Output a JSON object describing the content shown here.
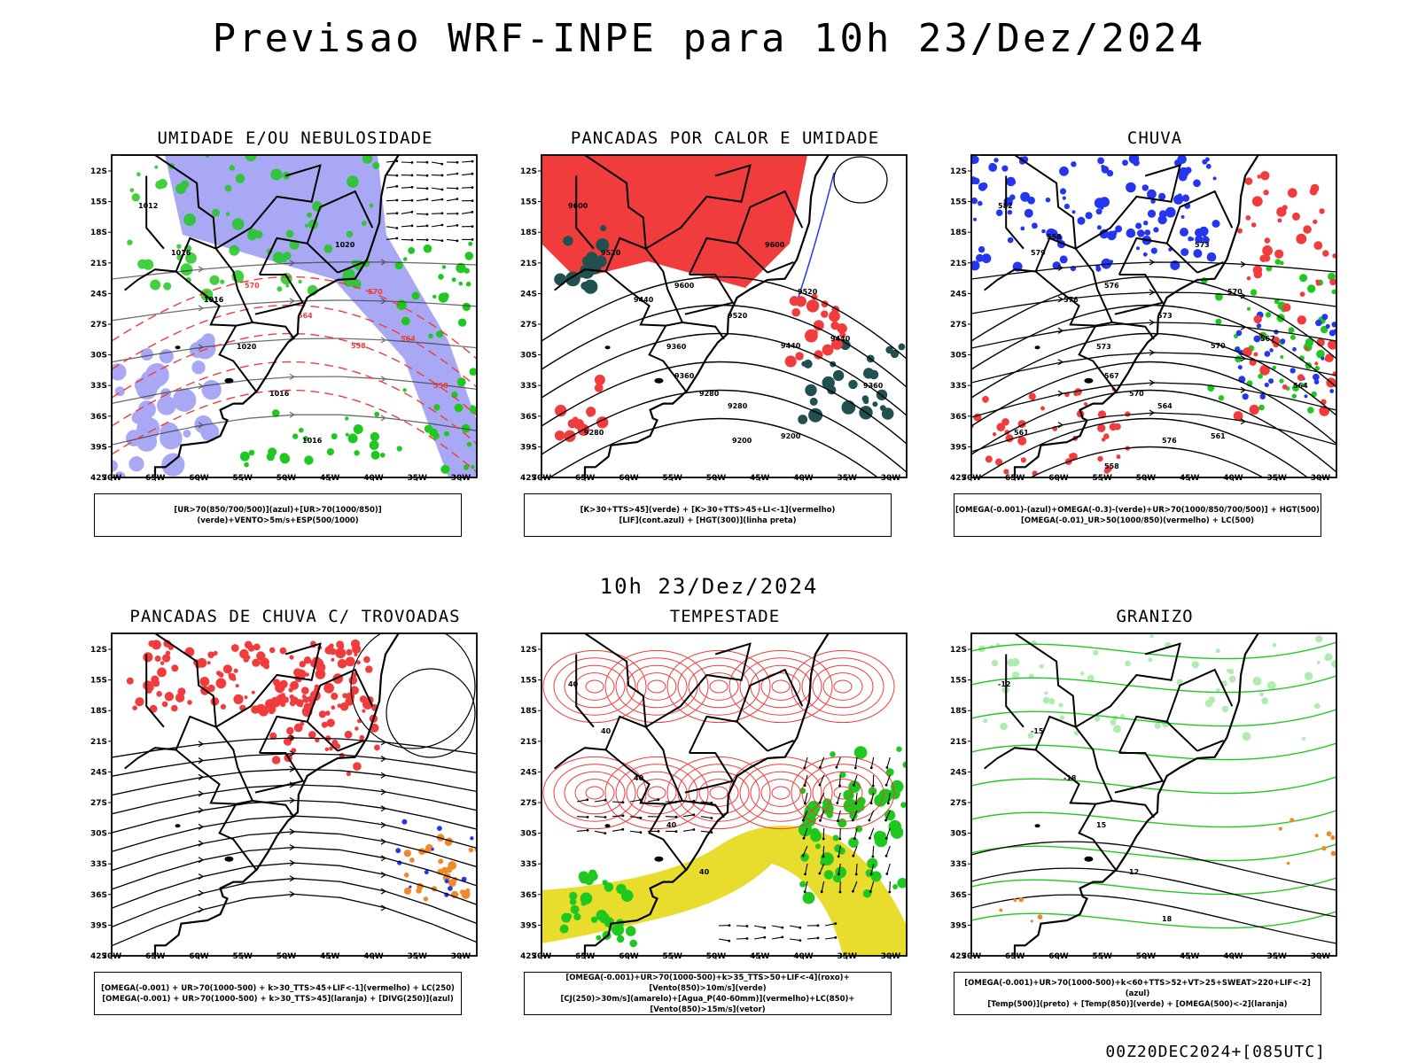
{
  "header": {
    "title": "Previsao WRF-INPE  para 10h 23/Dez/2024"
  },
  "mid_timestamp": "10h 23/Dez/2024",
  "footer_stamp": "00Z20DEC2024+[085UTC]",
  "axes": {
    "y_ticks": [
      "12S",
      "15S",
      "18S",
      "21S",
      "24S",
      "27S",
      "30S",
      "33S",
      "36S",
      "39S",
      "42S"
    ],
    "x_ticks": [
      "70W",
      "65W",
      "60W",
      "55W",
      "50W",
      "45W",
      "40W",
      "35W",
      "30W"
    ]
  },
  "panels": [
    {
      "id": "umidade",
      "title": "UMIDADE E/OU NEBULOSIDADE",
      "legend": [
        "[UR>70(850/700/500)](azul)+[UR>70(1000/850)](verde)+VENTO>5m/s+ESP(500/1000)"
      ],
      "labels": [
        "1012",
        "1016",
        "1016",
        "1020",
        "1016",
        "1016",
        "1020",
        "570",
        "564",
        "558"
      ]
    },
    {
      "id": "pancadas_calor",
      "title": "PANCADAS POR CALOR E UMIDADE",
      "legend": [
        "[K>30+TTS>45](verde) + [K>30+TTS>45+LI<-1](vermelho)",
        "[LIF](cont.azul) + [HGT(300)](linha preta)"
      ],
      "labels": [
        "9600",
        "9520",
        "9440",
        "9360",
        "9280",
        "9200",
        "9600",
        "9520",
        "9440",
        "9360",
        "9280"
      ]
    },
    {
      "id": "chuva",
      "title": "CHUVA",
      "legend": [
        "[OMEGA(-0.001)-(azul)+OMEGA(-0.3)-(verde)+UR>70(1000/850/700/500)] + HGT(500)",
        "[OMEGA(-0.01)_UR>50(1000/850)(vermelho) + LC(500)"
      ],
      "labels": [
        "582",
        "579",
        "576",
        "573",
        "570",
        "576",
        "573",
        "570",
        "567",
        "564",
        "561",
        "558"
      ]
    },
    {
      "id": "trovoadas",
      "title": "PANCADAS DE CHUVA C/ TROVOADAS",
      "legend": [
        "[OMEGA(-0.001) + UR>70(1000-500) + k>30_TTS>45+LIF<-1](vermelho) + LC(250)",
        "[OMEGA(-0.001) + UR>70(1000-500) + k>30_TTS>45](laranja) + [DIVG(250)](azul)"
      ],
      "labels": []
    },
    {
      "id": "tempestade",
      "title": "TEMPESTADE",
      "legend": [
        "[OMEGA(-0.001)+UR>70(1000-500)+k>35_TTS>50+LIF<-4](roxo)+[Vento(850)>10m/s](verde)",
        "[CJ(250)>30m/s](amarelo)+[Agua_P(40-60mm)](vermelho)+LC(850)+[Vento(850)>15m/s](vetor)"
      ],
      "labels": [
        "40",
        "40",
        "40",
        "40",
        "40"
      ]
    },
    {
      "id": "granizo",
      "title": "GRANIZO",
      "legend": [
        "[OMEGA(-0.001)+UR>70(1000-500)+k<60+TTS>52+VT>25+SWEAT>220+LIF<-2](azul)",
        "[Temp(500)](preto) + [Temp(850)](verde) + [OMEGA(500)<-2](laranja)"
      ],
      "labels": [
        "-12",
        "-15",
        "-18",
        "15",
        "12",
        "18"
      ]
    }
  ],
  "colors": {
    "red": "#f03c3c",
    "green": "#1fc81f",
    "blue": "#2436f0",
    "lightblue": "#a8a8f4",
    "darkgreen": "#205050",
    "yellow": "#e8dc2c",
    "orange": "#f08a28",
    "black": "#000000"
  }
}
